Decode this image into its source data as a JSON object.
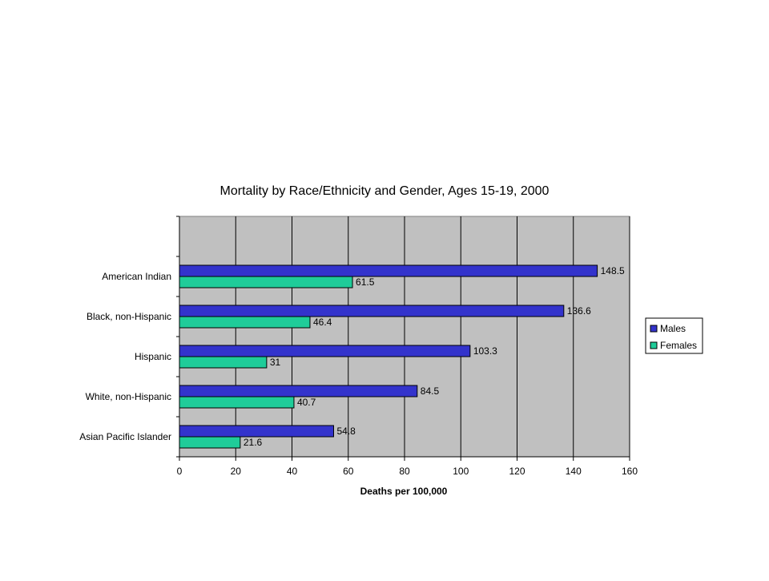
{
  "chart_data": {
    "type": "bar",
    "orientation": "horizontal",
    "title": "Mortality by Race/Ethnicity and Gender, Ages 15-19, 2000",
    "xlabel": "Deaths per 100,000",
    "ylabel": "",
    "xlim": [
      0,
      160
    ],
    "x_ticks": [
      0,
      20,
      40,
      60,
      80,
      100,
      120,
      140,
      160
    ],
    "grid": true,
    "legend_position": "right",
    "categories": [
      "",
      "American Indian",
      "Black, non-Hispanic",
      "Hispanic",
      "White, non-Hispanic",
      "Asian Pacific Islander"
    ],
    "series": [
      {
        "name": "Males",
        "color": "#3333cc",
        "values": [
          null,
          148.5,
          136.6,
          103.3,
          84.5,
          54.8
        ],
        "labels": [
          "",
          "148.5",
          "136.6",
          "103.3",
          "84.5",
          "54.8"
        ]
      },
      {
        "name": "Females",
        "color": "#1fcc99",
        "values": [
          null,
          61.5,
          46.4,
          31,
          40.7,
          21.6
        ],
        "labels": [
          "",
          "61.5",
          "46.4",
          "31",
          "40.7",
          "21.6"
        ]
      }
    ],
    "plot_background": "#c0c0c0"
  }
}
